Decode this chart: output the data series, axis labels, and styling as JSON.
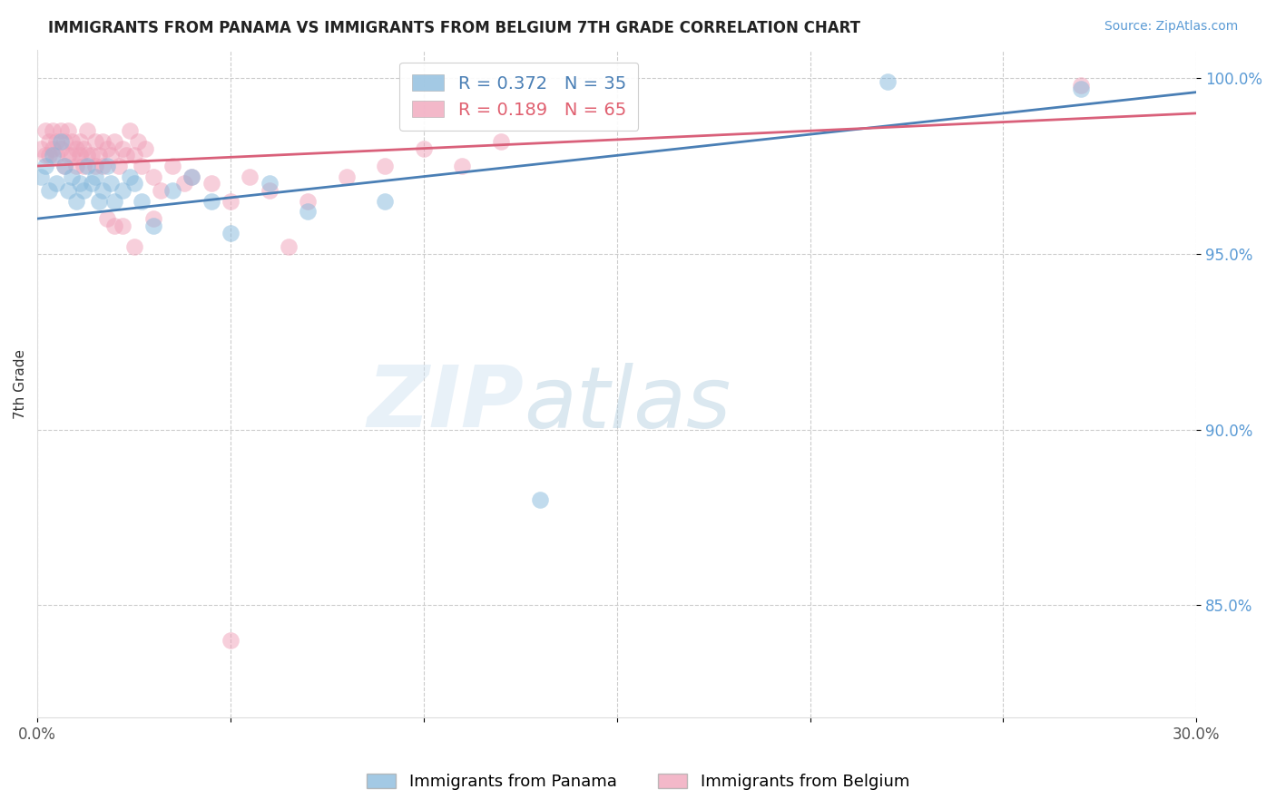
{
  "title": "IMMIGRANTS FROM PANAMA VS IMMIGRANTS FROM BELGIUM 7TH GRADE CORRELATION CHART",
  "source_text": "Source: ZipAtlas.com",
  "ylabel": "7th Grade",
  "xlim": [
    0.0,
    0.3
  ],
  "ylim": [
    0.818,
    1.008
  ],
  "yticks": [
    0.85,
    0.9,
    0.95,
    1.0
  ],
  "ytick_labels": [
    "85.0%",
    "90.0%",
    "95.0%",
    "100.0%"
  ],
  "xticks": [
    0.0,
    0.05,
    0.1,
    0.15,
    0.2,
    0.25,
    0.3
  ],
  "xtick_labels": [
    "0.0%",
    "",
    "",
    "",
    "",
    "",
    "30.0%"
  ],
  "legend_label_blue": "Immigrants from Panama",
  "legend_label_pink": "Immigrants from Belgium",
  "R_blue": 0.372,
  "N_blue": 35,
  "R_pink": 0.189,
  "N_pink": 65,
  "color_blue": "#85b8dc",
  "color_pink": "#f0a0b8",
  "line_color_blue": "#4a7fb5",
  "line_color_pink": "#d9607a",
  "panama_x": [
    0.001,
    0.002,
    0.003,
    0.004,
    0.005,
    0.006,
    0.007,
    0.008,
    0.009,
    0.01,
    0.011,
    0.012,
    0.013,
    0.014,
    0.015,
    0.016,
    0.017,
    0.018,
    0.019,
    0.02,
    0.022,
    0.024,
    0.025,
    0.027,
    0.03,
    0.035,
    0.04,
    0.045,
    0.05,
    0.06,
    0.07,
    0.09,
    0.13,
    0.22,
    0.27
  ],
  "panama_y": [
    0.972,
    0.975,
    0.968,
    0.978,
    0.97,
    0.982,
    0.975,
    0.968,
    0.972,
    0.965,
    0.97,
    0.968,
    0.975,
    0.97,
    0.972,
    0.965,
    0.968,
    0.975,
    0.97,
    0.965,
    0.968,
    0.972,
    0.97,
    0.965,
    0.958,
    0.968,
    0.972,
    0.965,
    0.956,
    0.97,
    0.962,
    0.965,
    0.88,
    0.999,
    0.997
  ],
  "belgium_x": [
    0.001,
    0.002,
    0.002,
    0.003,
    0.003,
    0.004,
    0.004,
    0.005,
    0.005,
    0.006,
    0.006,
    0.007,
    0.007,
    0.008,
    0.008,
    0.009,
    0.009,
    0.01,
    0.01,
    0.011,
    0.011,
    0.012,
    0.012,
    0.013,
    0.013,
    0.014,
    0.015,
    0.015,
    0.016,
    0.017,
    0.017,
    0.018,
    0.019,
    0.02,
    0.021,
    0.022,
    0.023,
    0.024,
    0.025,
    0.026,
    0.027,
    0.028,
    0.03,
    0.032,
    0.035,
    0.038,
    0.04,
    0.045,
    0.05,
    0.055,
    0.06,
    0.07,
    0.08,
    0.09,
    0.1,
    0.11,
    0.12,
    0.03,
    0.02,
    0.018,
    0.022,
    0.025,
    0.27,
    0.05,
    0.065
  ],
  "belgium_y": [
    0.98,
    0.978,
    0.985,
    0.978,
    0.982,
    0.98,
    0.985,
    0.978,
    0.982,
    0.98,
    0.985,
    0.975,
    0.982,
    0.978,
    0.985,
    0.978,
    0.982,
    0.975,
    0.98,
    0.978,
    0.982,
    0.975,
    0.98,
    0.978,
    0.985,
    0.978,
    0.982,
    0.975,
    0.978,
    0.982,
    0.975,
    0.98,
    0.978,
    0.982,
    0.975,
    0.98,
    0.978,
    0.985,
    0.978,
    0.982,
    0.975,
    0.98,
    0.972,
    0.968,
    0.975,
    0.97,
    0.972,
    0.97,
    0.965,
    0.972,
    0.968,
    0.965,
    0.972,
    0.975,
    0.98,
    0.975,
    0.982,
    0.96,
    0.958,
    0.96,
    0.958,
    0.952,
    0.998,
    0.84,
    0.952
  ],
  "trend_blue_x0": 0.0,
  "trend_blue_y0": 0.96,
  "trend_blue_x1": 0.3,
  "trend_blue_y1": 0.996,
  "trend_pink_x0": 0.0,
  "trend_pink_y0": 0.975,
  "trend_pink_x1": 0.3,
  "trend_pink_y1": 0.99
}
